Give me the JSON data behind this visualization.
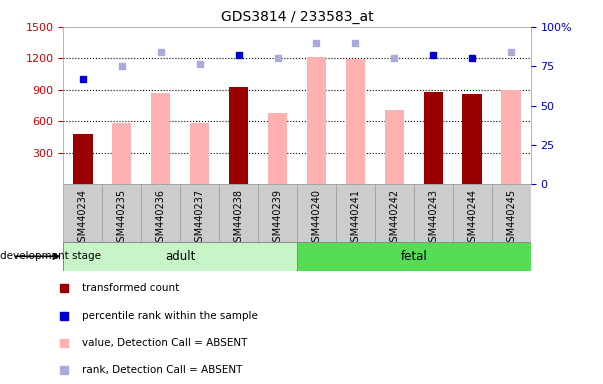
{
  "title": "GDS3814 / 233583_at",
  "categories": [
    "GSM440234",
    "GSM440235",
    "GSM440236",
    "GSM440237",
    "GSM440238",
    "GSM440239",
    "GSM440240",
    "GSM440241",
    "GSM440242",
    "GSM440243",
    "GSM440244",
    "GSM440245"
  ],
  "transformed_count": [
    480,
    null,
    null,
    null,
    930,
    null,
    null,
    null,
    null,
    880,
    860,
    null
  ],
  "percentile_rank": [
    67,
    null,
    null,
    null,
    82,
    null,
    null,
    null,
    null,
    82,
    80,
    null
  ],
  "value_absent": [
    null,
    580,
    870,
    580,
    null,
    680,
    1210,
    1190,
    710,
    null,
    null,
    900
  ],
  "rank_absent": [
    null,
    1130,
    1265,
    1145,
    null,
    1200,
    1350,
    1350,
    1205,
    null,
    null,
    1265
  ],
  "ylim_left": [
    0,
    1500
  ],
  "ylim_right": [
    0,
    100
  ],
  "yticks_left": [
    300,
    600,
    900,
    1200,
    1500
  ],
  "yticks_right": [
    0,
    25,
    50,
    75,
    100
  ],
  "adult_color": "#c8f5c8",
  "fetal_color": "#55dd55",
  "bar_color_dark": "#990000",
  "bar_color_light": "#ffb0b0",
  "dot_color_dark": "#0000cc",
  "dot_color_light": "#aaaadd",
  "bg_color": "#ffffff",
  "left_tick_color": "#cc0000",
  "right_tick_color": "#0000cc",
  "grid_color": "#000000",
  "cell_bg": "#cccccc",
  "cell_edge": "#999999"
}
